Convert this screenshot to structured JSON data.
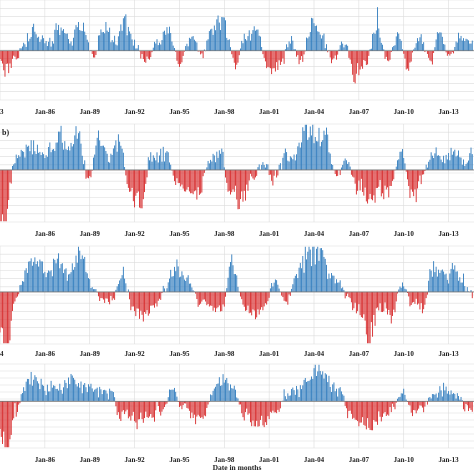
{
  "colors": {
    "positive": "#2f7bbd",
    "negative": "#d62728",
    "grid": "#dcdcdc",
    "axis": "#777777"
  },
  "figure": {
    "xlabel": "Date in months"
  },
  "chart_data": [
    {
      "type": "bar",
      "panel_label": "",
      "xlim": [
        1983.0,
        2014.7
      ],
      "ylim": [
        -3.3,
        3.4
      ],
      "grid": true,
      "x_ticks": [
        {
          "value": 1983.0,
          "label": "3"
        },
        {
          "value": 1986.0,
          "label": "Jan-86"
        },
        {
          "value": 1989.0,
          "label": "Jan-89"
        },
        {
          "value": 1992.0,
          "label": "Jan-92"
        },
        {
          "value": 1995.0,
          "label": "Jan-95"
        },
        {
          "value": 1998.0,
          "label": "Jan-98"
        },
        {
          "value": 2001.0,
          "label": "Jan-01"
        },
        {
          "value": 2004.0,
          "label": "Jan-04"
        },
        {
          "value": 2007.0,
          "label": "Jan-07"
        },
        {
          "value": 2010.0,
          "label": "Jan-10"
        },
        {
          "value": 2013.0,
          "label": "Jan-13"
        }
      ],
      "anchors": [
        [
          1983.0,
          -0.6
        ],
        [
          1983.4,
          -1.2
        ],
        [
          1984.0,
          -0.4
        ],
        [
          1984.8,
          0.8
        ],
        [
          1985.4,
          1.2
        ],
        [
          1986.2,
          0.4
        ],
        [
          1986.9,
          1.4
        ],
        [
          1987.6,
          0.6
        ],
        [
          1988.5,
          1.5
        ],
        [
          1989.2,
          -0.3
        ],
        [
          1989.9,
          1.3
        ],
        [
          1990.6,
          0.7
        ],
        [
          1991.4,
          1.6
        ],
        [
          1992.1,
          0.4
        ],
        [
          1992.8,
          -0.9
        ],
        [
          1993.5,
          0.6
        ],
        [
          1994.2,
          1.2
        ],
        [
          1995.0,
          -0.8
        ],
        [
          1995.8,
          1.0
        ],
        [
          1996.5,
          -0.3
        ],
        [
          1997.2,
          1.3
        ],
        [
          1998.0,
          1.7
        ],
        [
          1998.7,
          -0.9
        ],
        [
          1999.4,
          1.0
        ],
        [
          2000.2,
          1.1
        ],
        [
          2000.9,
          -0.8
        ],
        [
          2001.6,
          -1.2
        ],
        [
          2002.4,
          0.6
        ],
        [
          2003.1,
          -0.7
        ],
        [
          2003.8,
          1.6
        ],
        [
          2004.5,
          0.9
        ],
        [
          2005.2,
          -0.5
        ],
        [
          2006.0,
          0.6
        ],
        [
          2006.7,
          -1.5
        ],
        [
          2007.4,
          -0.8
        ],
        [
          2008.2,
          1.5
        ],
        [
          2008.9,
          -0.6
        ],
        [
          2009.6,
          0.9
        ],
        [
          2010.3,
          -0.9
        ],
        [
          2011.0,
          1.1
        ],
        [
          2011.7,
          -0.6
        ],
        [
          2012.4,
          1.2
        ],
        [
          2013.1,
          -0.4
        ],
        [
          2013.8,
          1.1
        ],
        [
          2014.6,
          0.5
        ]
      ]
    },
    {
      "type": "bar",
      "panel_label": "b)",
      "xlim": [
        1983.0,
        2014.7
      ],
      "ylim": [
        -3.4,
        3.0
      ],
      "grid": true,
      "x_ticks": [
        {
          "value": 1986.0,
          "label": "Jan-86"
        },
        {
          "value": 1989.0,
          "label": "Jan-89"
        },
        {
          "value": 1992.0,
          "label": "Jan-92"
        },
        {
          "value": 1995.0,
          "label": "Jan-95"
        },
        {
          "value": 1998.0,
          "label": "Jan-98"
        },
        {
          "value": 2001.0,
          "label": "Jan-01"
        },
        {
          "value": 2004.0,
          "label": "Jan-04"
        },
        {
          "value": 2007.0,
          "label": "Jan-07"
        },
        {
          "value": 2010.0,
          "label": "Jan-10"
        },
        {
          "value": 2013.0,
          "label": "Jan-13"
        }
      ],
      "anchors": [
        [
          1983.0,
          -3.2
        ],
        [
          1983.4,
          -2.4
        ],
        [
          1983.9,
          0.3
        ],
        [
          1984.6,
          1.2
        ],
        [
          1985.3,
          1.6
        ],
        [
          1986.0,
          0.8
        ],
        [
          1986.8,
          2.0
        ],
        [
          1987.5,
          1.1
        ],
        [
          1988.2,
          2.1
        ],
        [
          1988.9,
          -0.9
        ],
        [
          1989.6,
          1.7
        ],
        [
          1990.3,
          0.7
        ],
        [
          1991.0,
          1.6
        ],
        [
          1991.7,
          -1.3
        ],
        [
          1992.4,
          -1.8
        ],
        [
          1993.1,
          0.7
        ],
        [
          1994.0,
          1.0
        ],
        [
          1994.8,
          -0.6
        ],
        [
          1995.5,
          -1.2
        ],
        [
          1996.2,
          -1.5
        ],
        [
          1997.0,
          0.5
        ],
        [
          1997.7,
          1.2
        ],
        [
          1998.4,
          -1.6
        ],
        [
          1999.1,
          -1.9
        ],
        [
          1999.9,
          -0.4
        ],
        [
          2000.6,
          0.4
        ],
        [
          2001.3,
          -0.7
        ],
        [
          2002.0,
          0.9
        ],
        [
          2002.7,
          0.6
        ],
        [
          2003.4,
          2.3
        ],
        [
          2004.1,
          2.4
        ],
        [
          2004.8,
          1.8
        ],
        [
          2005.5,
          -0.4
        ],
        [
          2006.2,
          0.5
        ],
        [
          2006.9,
          -1.0
        ],
        [
          2007.6,
          -1.6
        ],
        [
          2008.4,
          -1.2
        ],
        [
          2009.1,
          -1.1
        ],
        [
          2009.8,
          1.2
        ],
        [
          2010.5,
          -1.5
        ],
        [
          2011.2,
          -0.5
        ],
        [
          2011.9,
          1.1
        ],
        [
          2012.6,
          0.6
        ],
        [
          2013.3,
          1.2
        ],
        [
          2014.0,
          0.5
        ],
        [
          2014.6,
          1.0
        ]
      ]
    },
    {
      "type": "bar",
      "panel_label": "",
      "xlim": [
        1983.0,
        2014.7
      ],
      "ylim": [
        -3.4,
        3.0
      ],
      "grid": true,
      "x_ticks": [
        {
          "value": 1983.0,
          "label": "4"
        },
        {
          "value": 1986.0,
          "label": "Jan-86"
        },
        {
          "value": 1989.0,
          "label": "Jan-89"
        },
        {
          "value": 1992.0,
          "label": "Jan-92"
        },
        {
          "value": 1995.0,
          "label": "Jan-95"
        },
        {
          "value": 1998.0,
          "label": "Jan-98"
        },
        {
          "value": 2001.0,
          "label": "Jan-01"
        },
        {
          "value": 2004.0,
          "label": "Jan-04"
        },
        {
          "value": 2007.0,
          "label": "Jan-07"
        },
        {
          "value": 2010.0,
          "label": "Jan-10"
        },
        {
          "value": 2013.0,
          "label": "Jan-13"
        }
      ],
      "anchors": [
        [
          1983.0,
          -2.5
        ],
        [
          1983.5,
          -3.0
        ],
        [
          1984.0,
          -0.6
        ],
        [
          1984.6,
          1.0
        ],
        [
          1985.3,
          1.9
        ],
        [
          1986.0,
          1.0
        ],
        [
          1986.8,
          2.2
        ],
        [
          1987.6,
          0.9
        ],
        [
          1988.4,
          2.6
        ],
        [
          1989.1,
          0.5
        ],
        [
          1989.8,
          -0.7
        ],
        [
          1990.5,
          -0.4
        ],
        [
          1991.2,
          0.8
        ],
        [
          1991.9,
          -1.1
        ],
        [
          1992.6,
          -1.4
        ],
        [
          1993.4,
          -0.9
        ],
        [
          1994.1,
          0.3
        ],
        [
          1994.8,
          1.6
        ],
        [
          1995.5,
          0.7
        ],
        [
          1996.3,
          -0.6
        ],
        [
          1997.0,
          -0.9
        ],
        [
          1997.8,
          -1.0
        ],
        [
          1998.5,
          1.9
        ],
        [
          1999.2,
          -0.7
        ],
        [
          1999.9,
          -1.6
        ],
        [
          2000.6,
          -0.8
        ],
        [
          2001.4,
          0.6
        ],
        [
          2002.1,
          -0.6
        ],
        [
          2002.8,
          0.9
        ],
        [
          2003.5,
          2.3
        ],
        [
          2004.2,
          2.6
        ],
        [
          2004.9,
          1.5
        ],
        [
          2005.6,
          0.6
        ],
        [
          2006.3,
          -0.4
        ],
        [
          2007.0,
          -1.2
        ],
        [
          2007.7,
          -2.6
        ],
        [
          2008.4,
          -0.8
        ],
        [
          2009.1,
          -1.5
        ],
        [
          2009.8,
          0.4
        ],
        [
          2010.6,
          -0.7
        ],
        [
          2011.3,
          -0.9
        ],
        [
          2012.0,
          1.6
        ],
        [
          2012.7,
          0.8
        ],
        [
          2013.4,
          1.4
        ],
        [
          2014.1,
          0.3
        ],
        [
          2014.6,
          -0.3
        ]
      ]
    },
    {
      "type": "bar",
      "panel_label": "",
      "xlim": [
        1983.0,
        2014.7
      ],
      "ylim": [
        -3.0,
        2.4
      ],
      "grid": true,
      "x_ticks": [
        {
          "value": 1986.0,
          "label": "Jan-86"
        },
        {
          "value": 1989.0,
          "label": "Jan-89"
        },
        {
          "value": 1992.0,
          "label": "Jan-92"
        },
        {
          "value": 1995.0,
          "label": "Jan-95"
        },
        {
          "value": 1998.0,
          "label": "Jan-98"
        },
        {
          "value": 2001.0,
          "label": "Jan-01"
        },
        {
          "value": 2004.0,
          "label": "Jan-04"
        },
        {
          "value": 2007.0,
          "label": "Jan-07"
        },
        {
          "value": 2010.0,
          "label": "Jan-10"
        },
        {
          "value": 2013.0,
          "label": "Jan-13"
        }
      ],
      "anchors": [
        [
          1983.0,
          -1.8
        ],
        [
          1983.5,
          -2.5
        ],
        [
          1984.0,
          -0.8
        ],
        [
          1984.6,
          0.7
        ],
        [
          1985.3,
          1.3
        ],
        [
          1986.0,
          0.9
        ],
        [
          1986.8,
          0.6
        ],
        [
          1987.5,
          1.2
        ],
        [
          1988.2,
          1.0
        ],
        [
          1988.9,
          0.8
        ],
        [
          1989.6,
          0.5
        ],
        [
          1990.3,
          0.9
        ],
        [
          1991.0,
          -0.7
        ],
        [
          1991.7,
          -1.0
        ],
        [
          1992.4,
          -1.1
        ],
        [
          1993.1,
          -0.9
        ],
        [
          1993.8,
          -0.5
        ],
        [
          1994.5,
          0.6
        ],
        [
          1995.2,
          -0.3
        ],
        [
          1995.9,
          -0.8
        ],
        [
          1996.6,
          -1.1
        ],
        [
          1997.3,
          0.7
        ],
        [
          1998.0,
          1.5
        ],
        [
          1998.7,
          0.6
        ],
        [
          1999.4,
          -0.9
        ],
        [
          2000.1,
          -1.1
        ],
        [
          2000.8,
          -1.0
        ],
        [
          2001.5,
          -0.6
        ],
        [
          2002.2,
          0.3
        ],
        [
          2002.9,
          0.6
        ],
        [
          2003.6,
          1.4
        ],
        [
          2004.3,
          1.9
        ],
        [
          2005.0,
          1.2
        ],
        [
          2005.7,
          0.7
        ],
        [
          2006.4,
          -0.9
        ],
        [
          2007.1,
          -1.2
        ],
        [
          2007.8,
          -1.5
        ],
        [
          2008.5,
          -1.0
        ],
        [
          2009.2,
          -0.5
        ],
        [
          2009.9,
          0.6
        ],
        [
          2010.6,
          -0.7
        ],
        [
          2011.3,
          -0.4
        ],
        [
          2012.0,
          0.5
        ],
        [
          2012.7,
          0.7
        ],
        [
          2013.4,
          0.6
        ],
        [
          2014.1,
          -0.3
        ],
        [
          2014.6,
          -0.6
        ]
      ]
    }
  ]
}
